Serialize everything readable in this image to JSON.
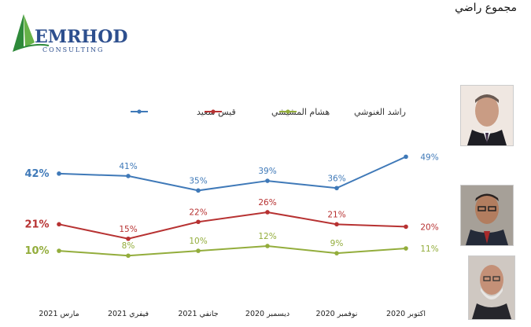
{
  "page": {
    "title": "مجموع راضي"
  },
  "logo": {
    "text_main": "EMRHOD",
    "text_sub": "CONSULTING"
  },
  "colors": {
    "saied": "#3f79b8",
    "mechichi": "#b73232",
    "ghannouchi": "#93ad3c"
  },
  "chart_data": {
    "type": "line",
    "categories": [
      "مارس 2021",
      "فيفري 2021",
      "جانفي 2021",
      "ديسمبر 2020",
      "نوفمبر 2020",
      "اكتوبر 2020"
    ],
    "ylim": [
      0,
      60
    ],
    "series": [
      {
        "name": "قيس سعيد",
        "values": [
          42,
          41,
          35,
          39,
          36,
          49
        ],
        "labels": [
          "42%",
          "41%",
          "35%",
          "39%",
          "36%",
          "49%"
        ]
      },
      {
        "name": "هشام المشيشي",
        "values": [
          21,
          15,
          22,
          26,
          21,
          20
        ],
        "labels": [
          "21%",
          "15%",
          "22%",
          "26%",
          "21%",
          "20%"
        ]
      },
      {
        "name": "راشد الغنوشي",
        "values": [
          10,
          8,
          10,
          12,
          9,
          11
        ],
        "labels": [
          "10%",
          "8%",
          "10%",
          "12%",
          "9%",
          "11%"
        ]
      }
    ],
    "legend_position": "top-center",
    "grid": false
  },
  "portraits": [
    {
      "icon": "portrait-saied-icon"
    },
    {
      "icon": "portrait-mechichi-icon"
    },
    {
      "icon": "portrait-ghannouchi-icon"
    }
  ]
}
